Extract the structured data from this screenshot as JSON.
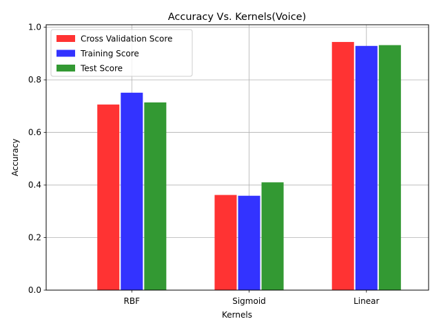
{
  "chart_data": {
    "type": "bar",
    "title": "Accuracy Vs. Kernels(Voice)",
    "xlabel": "Kernels",
    "ylabel": "Accuracy",
    "categories": [
      "RBF",
      "Sigmoid",
      "Linear"
    ],
    "ylim": [
      0,
      1.0
    ],
    "yticks": [
      0.0,
      0.2,
      0.4,
      0.6,
      0.8,
      1.0
    ],
    "ytick_labels": [
      "0.0",
      "0.2",
      "0.4",
      "0.6",
      "0.8",
      "1.0"
    ],
    "grid": true,
    "legend_position": "top-left",
    "series": [
      {
        "name": "Cross Validation Score",
        "color": "#ff3333",
        "values": [
          0.706,
          0.362,
          0.944
        ]
      },
      {
        "name": "Training Score",
        "color": "#3333ff",
        "values": [
          0.751,
          0.359,
          0.929
        ]
      },
      {
        "name": "Test Score",
        "color": "#339933",
        "values": [
          0.714,
          0.41,
          0.932
        ]
      }
    ]
  }
}
